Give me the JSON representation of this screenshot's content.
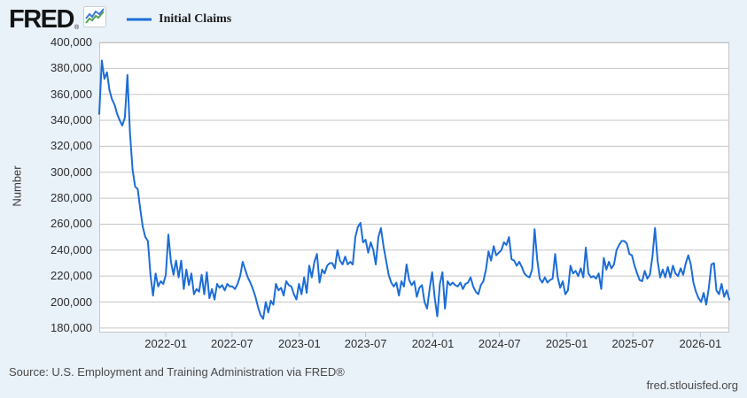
{
  "header": {
    "logo_text": "FRED",
    "logo_reg": "®",
    "legend": {
      "label": "Initial Claims"
    }
  },
  "footer": {
    "source": "Source: U.S. Employment and Training Administration via FRED®",
    "site": "fred.stlouisfed.org"
  },
  "colors": {
    "background": "#e9f1f9",
    "plot_background": "#ffffff",
    "grid": "#c6c6c6",
    "tick": "#b9c3d1",
    "line": "#1c6dd6",
    "icon_blue": "#3f7ad6",
    "icon_green": "#57a05c"
  },
  "chart_data": {
    "type": "line",
    "series_name": "Initial Claims",
    "ylabel": "Number",
    "frequency": "weekly",
    "start_date": "2021-07-03",
    "end_date": "2026-03-21",
    "ylim": [
      176500,
      400000
    ],
    "grid": "horizontal-only",
    "legend_position": "top-left",
    "y_ticks": [
      {
        "value": 400000,
        "label": "400,000"
      },
      {
        "value": 380000,
        "label": "380,000"
      },
      {
        "value": 360000,
        "label": "360,000"
      },
      {
        "value": 340000,
        "label": "340,000"
      },
      {
        "value": 320000,
        "label": "320,000"
      },
      {
        "value": 300000,
        "label": "300,000"
      },
      {
        "value": 280000,
        "label": "280,000"
      },
      {
        "value": 260000,
        "label": "260,000"
      },
      {
        "value": 240000,
        "label": "240,000"
      },
      {
        "value": 220000,
        "label": "220,000"
      },
      {
        "value": 200000,
        "label": "200,000"
      },
      {
        "value": 180000,
        "label": "180,000"
      }
    ],
    "x_ticks": [
      {
        "date": "2022-01-01",
        "label": "2022-01"
      },
      {
        "date": "2022-07-01",
        "label": "2022-07"
      },
      {
        "date": "2023-01-01",
        "label": "2023-01"
      },
      {
        "date": "2023-07-01",
        "label": "2023-07"
      },
      {
        "date": "2024-01-01",
        "label": "2024-01"
      },
      {
        "date": "2024-07-01",
        "label": "2024-07"
      },
      {
        "date": "2025-01-01",
        "label": "2025-01"
      },
      {
        "date": "2025-07-01",
        "label": "2025-07"
      },
      {
        "date": "2026-01-01",
        "label": "2026-01"
      }
    ],
    "values": [
      345000,
      386000,
      372000,
      377000,
      363000,
      356000,
      352000,
      345000,
      340000,
      336000,
      342000,
      375000,
      330000,
      302000,
      289000,
      287000,
      272000,
      258000,
      250000,
      247000,
      221000,
      205000,
      222000,
      212000,
      216000,
      214000,
      221000,
      252000,
      231000,
      221000,
      232000,
      219000,
      232000,
      210000,
      225000,
      213000,
      222000,
      206000,
      210000,
      208000,
      221000,
      206000,
      223000,
      203000,
      210000,
      202000,
      214000,
      211000,
      213000,
      209000,
      214000,
      212000,
      212000,
      210000,
      214000,
      220000,
      231000,
      225000,
      219000,
      215000,
      210000,
      204000,
      196000,
      190000,
      187000,
      200000,
      192000,
      201000,
      198000,
      214000,
      209000,
      211000,
      205000,
      216000,
      213000,
      212000,
      206000,
      202000,
      214000,
      206000,
      219000,
      207000,
      228000,
      219000,
      231000,
      237000,
      215000,
      225000,
      222000,
      228000,
      230000,
      230000,
      226000,
      240000,
      232000,
      229000,
      235000,
      229000,
      231000,
      229000,
      250000,
      258000,
      261000,
      246000,
      248000,
      238000,
      246000,
      240000,
      229000,
      250000,
      257000,
      243000,
      232000,
      221000,
      215000,
      212000,
      215000,
      205000,
      216000,
      212000,
      229000,
      217000,
      213000,
      216000,
      204000,
      211000,
      213000,
      200000,
      195000,
      210000,
      223000,
      203000,
      189000,
      214000,
      223000,
      195000,
      216000,
      213000,
      215000,
      213000,
      212000,
      215000,
      210000,
      214000,
      215000,
      219000,
      212000,
      208000,
      206000,
      213000,
      216000,
      225000,
      239000,
      232000,
      243000,
      236000,
      238000,
      240000,
      246000,
      244000,
      250000,
      233000,
      232000,
      228000,
      231000,
      227000,
      222000,
      220000,
      219000,
      225000,
      256000,
      233000,
      218000,
      215000,
      219000,
      215000,
      217000,
      218000,
      237000,
      219000,
      211000,
      216000,
      206000,
      209000,
      228000,
      222000,
      224000,
      220000,
      226000,
      219000,
      242000,
      222000,
      219000,
      220000,
      218000,
      222000,
      210000,
      234000,
      225000,
      231000,
      226000,
      229000,
      240000,
      244000,
      247000,
      247000,
      245000,
      237000,
      236000,
      228000,
      222000,
      217000,
      216000,
      224000,
      218000,
      221000,
      235000,
      257000,
      232000,
      219000,
      225000,
      219000,
      227000,
      219000,
      228000,
      222000,
      220000,
      226000,
      221000,
      230000,
      236000,
      229000,
      215000,
      208000,
      203000,
      200000,
      207000,
      198000,
      211000,
      229000,
      230000,
      209000,
      206000,
      214000,
      204000,
      209000,
      202000
    ]
  }
}
